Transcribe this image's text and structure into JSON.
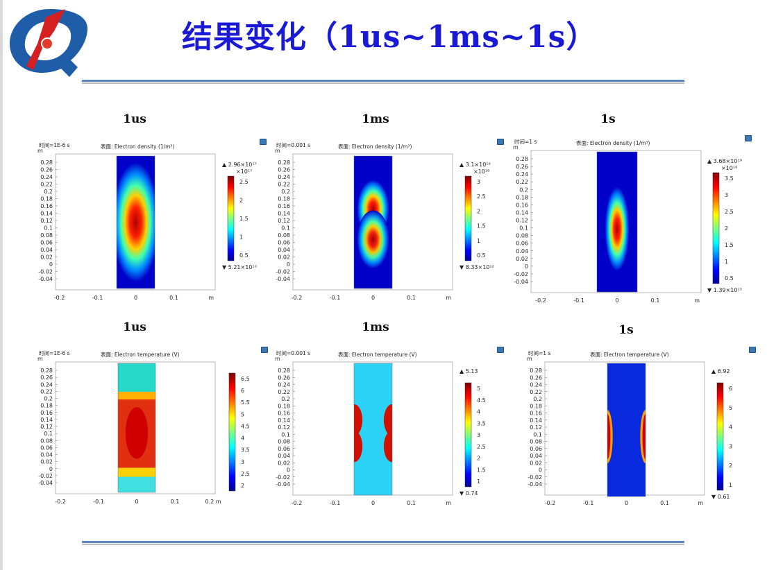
{
  "slide": {
    "title": "结果变化（1us~1ms~1s）"
  },
  "panels": [
    {
      "id": "density-1us",
      "label": "1us",
      "time": "时间=1E-6 s",
      "surface": "表面: Electron density (1/m³)",
      "colorbar": {
        "max": "▲ 2.96×10¹⁷",
        "unit": "×10¹⁷",
        "min": "▼ 5.21×10¹⁰",
        "ticks": [
          "2.5",
          "2",
          "1.5",
          "1",
          "0.5"
        ]
      },
      "yticks": [
        "0.28",
        "0.26",
        "0.24",
        "0.22",
        "0.2",
        "0.18",
        "0.16",
        "0.14",
        "0.12",
        "0.1",
        "0.08",
        "0.06",
        "0.04",
        "0.02",
        "0",
        "-0.02",
        "-0.04"
      ],
      "xticks": [
        "-0.2",
        "-0.1",
        "0",
        "0.1"
      ],
      "axis_unit": "m"
    },
    {
      "id": "density-1ms",
      "label": "1ms",
      "time": "时间=0.001 s",
      "surface": "表面: Electron density (1/m³)",
      "colorbar": {
        "max": "▲ 3.1×10¹⁸",
        "unit": "×10¹⁸",
        "min": "▼ 8.33×10¹²",
        "ticks": [
          "3",
          "2.5",
          "2",
          "1.5",
          "1",
          "0.5"
        ]
      },
      "yticks": [
        "0.28",
        "0.26",
        "0.24",
        "0.22",
        "0.2",
        "0.18",
        "0.16",
        "0.14",
        "0.12",
        "0.1",
        "0.08",
        "0.06",
        "0.04",
        "0.02",
        "0",
        "-0.02",
        "-0.04"
      ],
      "xticks": [
        "-0.2",
        "-0.1",
        "0",
        "0.1"
      ],
      "axis_unit": "m"
    },
    {
      "id": "density-1s",
      "label": "1s",
      "time": "时间=1 s",
      "surface": "表面: Electron density (1/m³)",
      "colorbar": {
        "max": "▲ 3.68×10¹⁹",
        "unit": "×10¹⁹",
        "min": "▼ 1.39×10¹³",
        "ticks": [
          "3.5",
          "3",
          "2.5",
          "2",
          "1.5",
          "1",
          "0.5"
        ]
      },
      "yticks": [
        "0.28",
        "0.26",
        "0.24",
        "0.22",
        "0.2",
        "0.18",
        "0.16",
        "0.14",
        "0.12",
        "0.1",
        "0.08",
        "0.06",
        "0.04",
        "0.02",
        "0",
        "-0.02",
        "-0.04"
      ],
      "xticks": [
        "-0.2",
        "-0.1",
        "0",
        "0.1"
      ],
      "axis_unit": "m"
    },
    {
      "id": "temperature-1us",
      "label": "1us",
      "time": "时间=1E-6 s",
      "surface": "表面: Electron temperature (V)",
      "colorbar": {
        "max": "",
        "unit": "",
        "min": "",
        "ticks": [
          "6.5",
          "6",
          "5.5",
          "5",
          "4.5",
          "4",
          "3.5",
          "3",
          "2.5",
          "2"
        ]
      },
      "yticks": [
        "0.28",
        "0.26",
        "0.24",
        "0.22",
        "0.2",
        "0.18",
        "0.16",
        "0.14",
        "0.12",
        "0.1",
        "0.08",
        "0.06",
        "0.04",
        "0.02",
        "0",
        "-0.02",
        "-0.04"
      ],
      "xticks": [
        "-0.2",
        "-0.1",
        "0",
        "0.1",
        "0.2 m"
      ],
      "axis_unit": ""
    },
    {
      "id": "temperature-1ms",
      "label": "1ms",
      "time": "时间=0.001 s",
      "surface": "表面: Electron temperature (V)",
      "colorbar": {
        "max": "▲ 5.13",
        "unit": "",
        "min": "▼ 0.74",
        "ticks": [
          "5",
          "4.5",
          "4",
          "3.5",
          "3",
          "2.5",
          "2",
          "1.5",
          "1"
        ]
      },
      "yticks": [
        "0.28",
        "0.26",
        "0.24",
        "0.22",
        "0.2",
        "0.18",
        "0.16",
        "0.14",
        "0.12",
        "0.1",
        "0.08",
        "0.06",
        "0.04",
        "0.02",
        "0",
        "-0.02",
        "-0.04"
      ],
      "xticks": [
        "-0.2",
        "-0.1",
        "0",
        "0.1"
      ],
      "axis_unit": "m"
    },
    {
      "id": "temperature-1s",
      "label": "1s",
      "time": "时间=1 s",
      "surface": "表面: Electron temperature (V)",
      "colorbar": {
        "max": "▲ 6.92",
        "unit": "",
        "min": "▼ 0.61",
        "ticks": [
          "6",
          "5",
          "4",
          "3",
          "2",
          "1"
        ]
      },
      "yticks": [
        "0.28",
        "0.26",
        "0.24",
        "0.22",
        "0.2",
        "0.18",
        "0.16",
        "0.14",
        "0.12",
        "0.1",
        "0.08",
        "0.06",
        "0.04",
        "0.02",
        "0",
        "-0.02",
        "-0.04"
      ],
      "xticks": [
        "-0.2",
        "-0.1",
        "0",
        "0.1"
      ],
      "axis_unit": "m"
    }
  ],
  "y_axis_unit": "m",
  "colors": {
    "title": "#1a1ad6",
    "rule": "#5b86c3"
  }
}
